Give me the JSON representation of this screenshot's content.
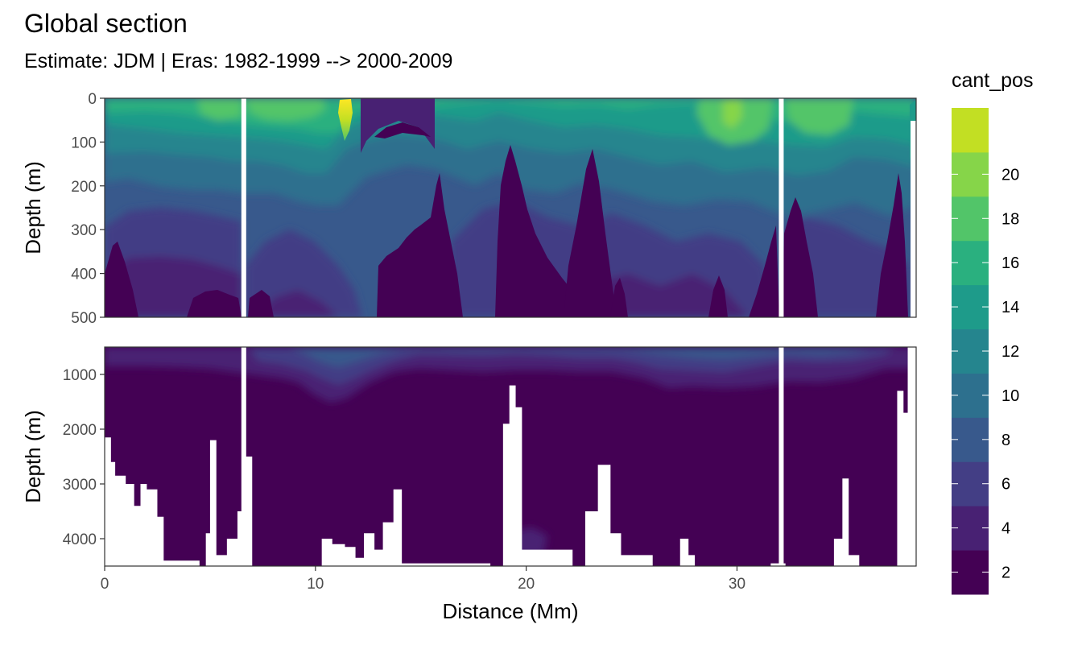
{
  "chart_data": {
    "type": "heatmap",
    "title": "Global section",
    "subtitle": "Estimate: JDM  | Eras: 1982-1999 --> 2000-2009",
    "xlabel": "Distance (Mm)",
    "ylabel": "Depth (m)",
    "xlim": [
      0,
      38.5
    ],
    "x_ticks": [
      0,
      10,
      20,
      30
    ],
    "panels": [
      {
        "name": "upper",
        "ylim": [
          0,
          500
        ],
        "y_ticks": [
          0,
          100,
          200,
          300,
          400,
          500
        ]
      },
      {
        "name": "lower",
        "ylim": [
          500,
          4500
        ],
        "y_ticks": [
          1000,
          2000,
          3000,
          4000
        ]
      }
    ],
    "missing_columns_x": [
      6.6,
      32.1
    ],
    "legend": {
      "title": "cant_pos",
      "placement": "right",
      "levels": [
        {
          "value": 2,
          "color": "#440154"
        },
        {
          "value": 4,
          "color": "#482173"
        },
        {
          "value": 6,
          "color": "#433e85"
        },
        {
          "value": 8,
          "color": "#38598c"
        },
        {
          "value": 10,
          "color": "#2d708e"
        },
        {
          "value": 12,
          "color": "#25858e"
        },
        {
          "value": 14,
          "color": "#1e9b8a"
        },
        {
          "value": 16,
          "color": "#2ab07f"
        },
        {
          "value": 18,
          "color": "#52c569"
        },
        {
          "value": 20,
          "color": "#86d549"
        },
        {
          "value": 22,
          "color": "#c2df23"
        },
        {
          "value": 24,
          "color": "#fde725"
        }
      ],
      "labels": [
        2,
        4,
        6,
        8,
        10,
        12,
        14,
        16,
        18,
        20
      ]
    },
    "seafloor_m": [
      [
        0.0,
        2150
      ],
      [
        0.3,
        2600
      ],
      [
        0.5,
        2850
      ],
      [
        1.0,
        3000
      ],
      [
        1.4,
        3400
      ],
      [
        1.7,
        3000
      ],
      [
        2.0,
        3100
      ],
      [
        2.5,
        3600
      ],
      [
        2.8,
        4400
      ],
      [
        4.5,
        4500
      ],
      [
        4.8,
        3900
      ],
      [
        5.0,
        2200
      ],
      [
        5.3,
        4300
      ],
      [
        5.8,
        4000
      ],
      [
        6.3,
        3500
      ],
      [
        6.7,
        2500
      ],
      [
        7.0,
        4600
      ],
      [
        9.8,
        4600
      ],
      [
        10.3,
        4000
      ],
      [
        10.8,
        4100
      ],
      [
        11.4,
        4150
      ],
      [
        11.9,
        4350
      ],
      [
        12.3,
        3900
      ],
      [
        12.8,
        4200
      ],
      [
        13.2,
        3700
      ],
      [
        13.7,
        3100
      ],
      [
        14.1,
        4450
      ],
      [
        18.3,
        4500
      ],
      [
        18.9,
        1900
      ],
      [
        19.2,
        1200
      ],
      [
        19.5,
        1600
      ],
      [
        19.8,
        4200
      ],
      [
        22.2,
        4500
      ],
      [
        22.8,
        3500
      ],
      [
        23.4,
        2650
      ],
      [
        24.0,
        3900
      ],
      [
        24.5,
        4300
      ],
      [
        25.5,
        4300
      ],
      [
        26.0,
        4500
      ],
      [
        27.1,
        4500
      ],
      [
        27.3,
        4000
      ],
      [
        27.7,
        4300
      ],
      [
        28.0,
        4500
      ],
      [
        31.3,
        4500
      ],
      [
        31.6,
        4450
      ],
      [
        32.3,
        4500
      ],
      [
        34.1,
        4500
      ],
      [
        34.6,
        4000
      ],
      [
        35.0,
        2900
      ],
      [
        35.3,
        4300
      ],
      [
        35.8,
        4500
      ],
      [
        37.4,
        4500
      ],
      [
        37.6,
        1300
      ],
      [
        37.9,
        1700
      ],
      [
        38.1,
        500
      ]
    ]
  }
}
